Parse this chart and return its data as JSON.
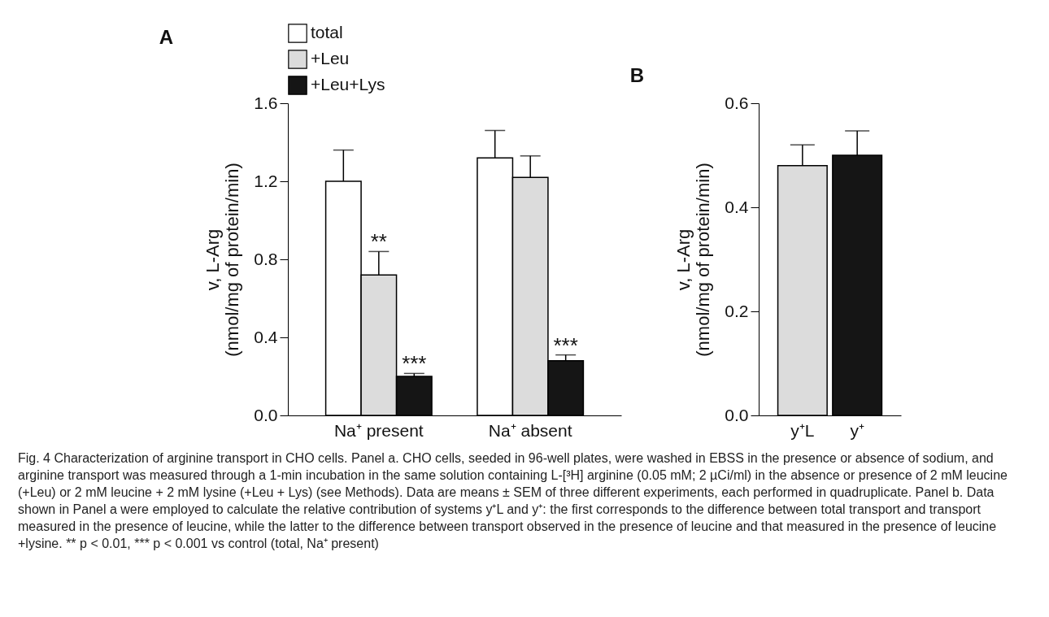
{
  "chart_data": [
    {
      "type": "bar",
      "title": "A",
      "ylabel": "v, L-Arg\n(nmol/mg of protein/min)",
      "categories": [
        "Na⁺ present",
        "Na⁺ absent"
      ],
      "series": [
        {
          "name": "total",
          "color": "#ffffff",
          "values": [
            1.2,
            1.32
          ],
          "errors": [
            0.16,
            0.14
          ]
        },
        {
          "name": "+Leu",
          "color": "#dcdcdc",
          "values": [
            0.72,
            1.22
          ],
          "errors": [
            0.12,
            0.11
          ],
          "value_labels": [
            "**",
            null
          ]
        },
        {
          "name": "+Leu+Lys",
          "color": "#151515",
          "values": [
            0.2,
            0.28
          ],
          "errors": [
            0.015,
            0.03
          ],
          "value_labels": [
            "***",
            "***"
          ]
        }
      ],
      "ylim": [
        0,
        1.6
      ],
      "yticks": [
        {
          "value": 0,
          "label": "0.0"
        },
        0.4,
        0.8,
        1.2,
        1.6
      ],
      "grid": false,
      "legend": "top"
    },
    {
      "type": "bar",
      "title": "B",
      "ylabel": "v, L-Arg\n(nmol/mg of protein/min)",
      "categories": [
        "y⁺L",
        "y⁺"
      ],
      "values": [
        0.48,
        0.5
      ],
      "errors": [
        0.04,
        0.047
      ],
      "colors": [
        "#dcdcdc",
        "#151515"
      ],
      "ylim": [
        0,
        0.6
      ],
      "yticks": [
        {
          "value": 0,
          "label": "0.0"
        },
        {
          "value": 0.2,
          "label": "0.2"
        },
        {
          "value": 0.4,
          "label": "0.4"
        },
        {
          "value": 0.6,
          "label": "0.6"
        }
      ],
      "grid": false,
      "annotations": [
        "Fig. 4 Characterization of arginine transport in CHO cells. Panel a. CHO cells, seeded in 96-well plates, were washed in EBSS in the presence or absence of sodium, and arginine transport was measured through a 1-min incubation in the same solution containing L-[³H] arginine (0.05 mM; 2 µCi/ml) in the absence or presence of 2 mM leucine (+Leu) or 2 mM leucine + 2 mM lysine (+Leu + Lys) (see Methods). Data are means ± SEM of three different experiments, each performed in quadruplicate. Panel b. Data shown in Panel a were employed to calculate the relative contribution of systems y⁺L and y⁺: the first corresponds to the difference between total transport and transport measured in the presence of leucine, while the latter to the difference between transport observed in the presence of leucine and that measured in the presence of leucine +lysine. ** p < 0.01, *** p < 0.001 vs control (total, Na⁺ present)"
      ]
    }
  ]
}
